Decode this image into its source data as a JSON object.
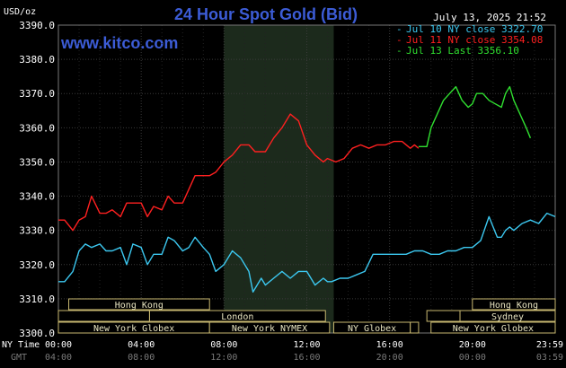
{
  "header": {
    "y_unit": "USD/oz",
    "title": "24 Hour Spot Gold (Bid)",
    "timestamp": "July 13, 2025 21:52",
    "website": "www.kitco.com"
  },
  "legend": [
    {
      "label": "Jul 10 NY close 3322.70",
      "color": "#3cc8f0"
    },
    {
      "label": "Jul 11 NY close 3354.08",
      "color": "#ff2020"
    },
    {
      "label": "Jul 13 Last 3356.10",
      "color": "#30e030"
    }
  ],
  "time_axis": {
    "ny_label": "NY Time",
    "gmt_label": "GMT",
    "ny_ticks": [
      "00:00",
      "04:00",
      "08:00",
      "12:00",
      "16:00",
      "20:00",
      "23:59"
    ],
    "gmt_ticks": [
      "04:00",
      "08:00",
      "12:00",
      "16:00",
      "20:00",
      "00:00",
      "03:59"
    ]
  },
  "sessions": [
    {
      "label": "Hong Kong",
      "row": 0,
      "start": 0.5,
      "end": 7.3
    },
    {
      "label": "London",
      "row": 1,
      "start": 4.4,
      "end": 12.9
    },
    {
      "label": "New York Globex",
      "row": 2,
      "start": 0,
      "end": 7.3
    },
    {
      "label": "New York NYMEX",
      "row": 2,
      "start": 7.3,
      "end": 13.1
    },
    {
      "label": "NY Globex",
      "row": 2,
      "start": 13.3,
      "end": 17.0
    },
    {
      "label": "Hong Kong",
      "row": 0,
      "start": 20.0,
      "end": 24.0
    },
    {
      "label": "Sydney",
      "row": 1,
      "start": 19.4,
      "end": 24.0
    },
    {
      "label": "New York Globex",
      "row": 2,
      "start": 18.0,
      "end": 24.0
    },
    {
      "label": "",
      "row": 1,
      "start": 0,
      "end": 4.4
    },
    {
      "label": "",
      "row": 1,
      "start": 17.8,
      "end": 19.4
    },
    {
      "label": "",
      "row": 2,
      "start": 17.0,
      "end": 17.4
    }
  ],
  "chart_data": {
    "type": "line",
    "title": "24 Hour Spot Gold (Bid)",
    "ylabel": "USD/oz",
    "xlabel": "NY Time",
    "xlim": [
      0,
      24
    ],
    "ylim": [
      3300,
      3390
    ],
    "y_ticks": [
      "3300.0",
      "3310.0",
      "3320.0",
      "3330.0",
      "3340.0",
      "3350.0",
      "3360.0",
      "3370.0",
      "3380.0",
      "3390.0"
    ],
    "y_tick_values": [
      3300,
      3310,
      3320,
      3330,
      3340,
      3350,
      3360,
      3370,
      3380,
      3390
    ],
    "x_tick_values": [
      0,
      4,
      8,
      12,
      16,
      20,
      24
    ],
    "grid": true,
    "nymex_shade": [
      8.0,
      13.3
    ],
    "legend_position": "top-right",
    "series": [
      {
        "name": "Jul 10 NY close 3322.70",
        "color": "#3cc8f0",
        "x": [
          0,
          0.3,
          0.7,
          1.0,
          1.3,
          1.6,
          2.0,
          2.3,
          2.6,
          3.0,
          3.3,
          3.6,
          4.0,
          4.3,
          4.6,
          5.0,
          5.3,
          5.6,
          6.0,
          6.3,
          6.6,
          7.0,
          7.3,
          7.6,
          8.0,
          8.4,
          8.8,
          9.2,
          9.4,
          9.6,
          9.8,
          10.0,
          10.4,
          10.8,
          11.2,
          11.6,
          12.0,
          12.4,
          12.8,
          13.0,
          13.2,
          13.6,
          14.0,
          14.4,
          14.8,
          15.2,
          15.6,
          16.0,
          16.4,
          16.8,
          17.2,
          17.6,
          18.0,
          18.4,
          18.8,
          19.2,
          19.6,
          20.0,
          20.4,
          20.8,
          21.2,
          21.4,
          21.6,
          21.8,
          22.0,
          22.4,
          22.8,
          23.2,
          23.6,
          24.0
        ],
        "y": [
          3315,
          3315,
          3318,
          3324,
          3326,
          3325,
          3326,
          3324,
          3324,
          3325,
          3320,
          3326,
          3325,
          3320,
          3323,
          3323,
          3328,
          3327,
          3324,
          3325,
          3328,
          3325,
          3323,
          3318,
          3320,
          3324,
          3322,
          3318,
          3312,
          3314,
          3316,
          3314,
          3316,
          3318,
          3316,
          3318,
          3318,
          3314,
          3316,
          3315,
          3315,
          3316,
          3316,
          3317,
          3318,
          3323,
          3323,
          3323,
          3323,
          3323,
          3324,
          3324,
          3323,
          3323,
          3324,
          3324,
          3325,
          3325,
          3327,
          3334,
          3328,
          3328,
          3330,
          3331,
          3330,
          3332,
          3333,
          3332,
          3335,
          3334
        ]
      },
      {
        "name": "Jul 11 NY close 3354.08",
        "color": "#ff2020",
        "x": [
          0,
          0.3,
          0.7,
          1.0,
          1.3,
          1.6,
          2.0,
          2.3,
          2.6,
          3.0,
          3.3,
          3.6,
          4.0,
          4.3,
          4.6,
          5.0,
          5.3,
          5.6,
          6.0,
          6.3,
          6.6,
          7.0,
          7.3,
          7.6,
          8.0,
          8.4,
          8.8,
          9.2,
          9.5,
          10.0,
          10.4,
          10.8,
          11.2,
          11.6,
          12.0,
          12.4,
          12.8,
          13.0,
          13.4,
          13.8,
          14.2,
          14.6,
          15.0,
          15.4,
          15.8,
          16.2,
          16.6,
          17.0,
          17.2,
          17.4
        ],
        "y": [
          3333,
          3333,
          3330,
          3333,
          3334,
          3340,
          3335,
          3335,
          3336,
          3334,
          3338,
          3338,
          3338,
          3334,
          3337,
          3336,
          3340,
          3338,
          3338,
          3342,
          3346,
          3346,
          3346,
          3347,
          3350,
          3352,
          3355,
          3355,
          3353,
          3353,
          3357,
          3360,
          3364,
          3362,
          3355,
          3352,
          3350,
          3351,
          3350,
          3351,
          3354,
          3355,
          3354,
          3355,
          3355,
          3356,
          3356,
          3354,
          3355,
          3354
        ]
      },
      {
        "name": "Jul 13 Last 3356.10",
        "color": "#30e030",
        "x": [
          17.4,
          17.8,
          18.0,
          18.3,
          18.6,
          18.9,
          19.2,
          19.5,
          19.8,
          20.0,
          20.2,
          20.5,
          20.8,
          21.1,
          21.4,
          21.6,
          21.8,
          22.0,
          22.3,
          22.6,
          22.8
        ],
        "y": [
          3354.5,
          3354.5,
          3360,
          3364,
          3368,
          3370,
          3372,
          3368,
          3366,
          3367,
          3370,
          3370,
          3368,
          3367,
          3366,
          3370,
          3372,
          3368,
          3364,
          3360,
          3357
        ]
      }
    ]
  }
}
